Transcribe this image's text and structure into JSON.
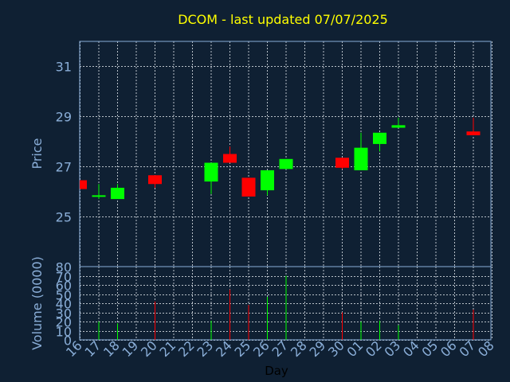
{
  "chart_data": {
    "type": "candlestick",
    "title": "DCOM - last updated 07/07/2025",
    "xlabel": "Day",
    "price_axis": {
      "label": "Price",
      "ylim": [
        23.0,
        32.0
      ],
      "ticks": [
        25,
        27,
        29,
        31
      ]
    },
    "volume_axis": {
      "label": "Volume (0000)",
      "ylim": [
        0,
        80
      ],
      "ticks": [
        0,
        10,
        20,
        30,
        40,
        50,
        60,
        70,
        80
      ]
    },
    "x_tick_labels": [
      "16",
      "17",
      "18",
      "19",
      "20",
      "21",
      "22",
      "23",
      "24",
      "25",
      "26",
      "27",
      "28",
      "29",
      "30",
      "01",
      "02",
      "03",
      "04",
      "05",
      "06",
      "07",
      "08"
    ],
    "colors": {
      "up": "#00ff00",
      "down": "#ff0000",
      "title": "#ffff00",
      "axis": "#8aaed8",
      "background": "#0f2033",
      "grid": "#b8c0c8"
    },
    "grid": true,
    "candles": [
      {
        "day": "16",
        "open": 26.45,
        "high": 26.45,
        "low": 26.1,
        "close": 26.1,
        "volume": 0
      },
      {
        "day": "17",
        "open": 25.85,
        "high": 26.3,
        "low": 25.7,
        "close": 25.85,
        "volume": 20
      },
      {
        "day": "18",
        "open": 25.7,
        "high": 26.3,
        "low": 25.7,
        "close": 26.15,
        "volume": 18
      },
      {
        "day": "20",
        "open": 26.65,
        "high": 26.65,
        "low": 26.15,
        "close": 26.3,
        "volume": 42
      },
      {
        "day": "23",
        "open": 26.4,
        "high": 27.15,
        "low": 25.9,
        "close": 27.15,
        "volume": 21
      },
      {
        "day": "24",
        "open": 27.5,
        "high": 27.8,
        "low": 27.15,
        "close": 27.15,
        "volume": 55
      },
      {
        "day": "25",
        "open": 26.55,
        "high": 26.55,
        "low": 25.8,
        "close": 25.8,
        "volume": 38
      },
      {
        "day": "26",
        "open": 26.05,
        "high": 26.85,
        "low": 25.85,
        "close": 26.85,
        "volume": 47
      },
      {
        "day": "27",
        "open": 26.9,
        "high": 27.3,
        "low": 26.9,
        "close": 27.3,
        "volume": 70
      },
      {
        "day": "30",
        "open": 27.35,
        "high": 27.35,
        "low": 26.9,
        "close": 26.95,
        "volume": 30
      },
      {
        "day": "01",
        "open": 26.85,
        "high": 28.35,
        "low": 26.85,
        "close": 27.75,
        "volume": 20
      },
      {
        "day": "02",
        "open": 27.9,
        "high": 28.35,
        "low": 27.6,
        "close": 28.35,
        "volume": 21
      },
      {
        "day": "03",
        "open": 28.55,
        "high": 28.95,
        "low": 28.55,
        "close": 28.65,
        "volume": 16
      },
      {
        "day": "07",
        "open": 28.4,
        "high": 28.95,
        "low": 28.25,
        "close": 28.25,
        "volume": 33
      }
    ]
  }
}
